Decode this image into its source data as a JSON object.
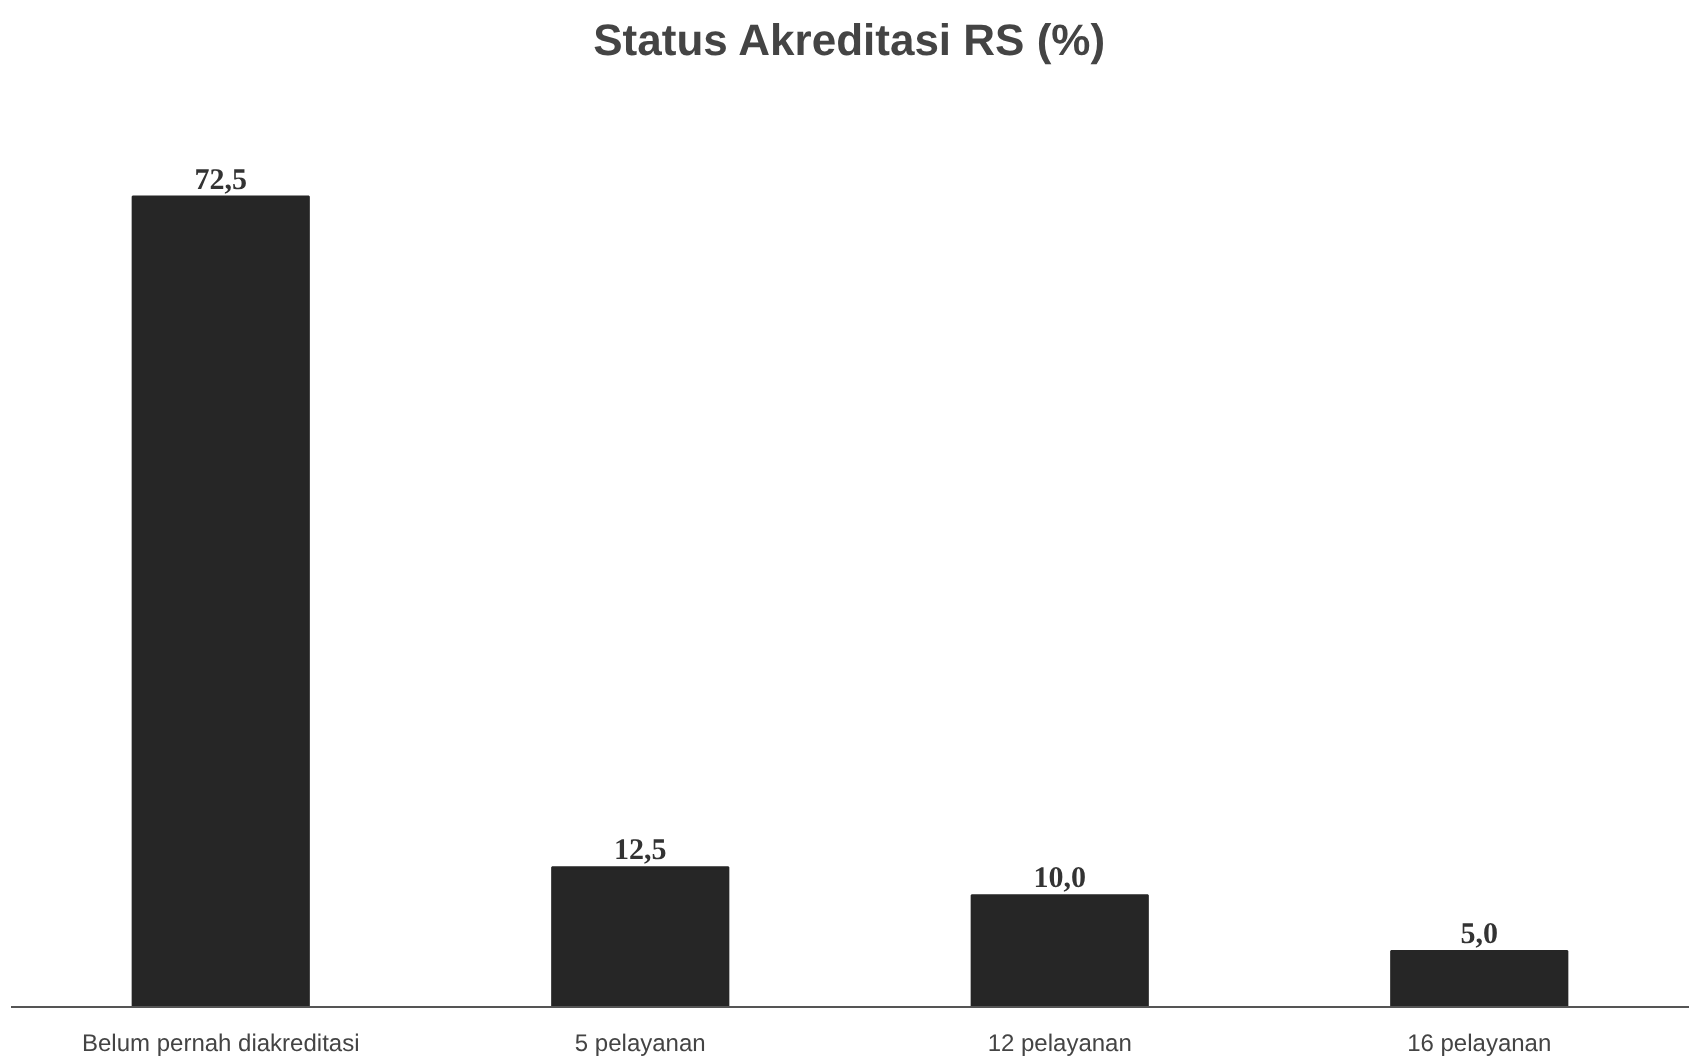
{
  "chart_data": {
    "type": "bar",
    "title": "Status Akreditasi RS (%)",
    "categories": [
      "Belum pernah diakreditasi",
      "5 pelayanan",
      "12 pelayanan",
      "16 pelayanan"
    ],
    "values": [
      72.5,
      12.5,
      10.0,
      5.0
    ],
    "value_labels": [
      "72,5",
      "12,5",
      "10,0",
      "5,0"
    ],
    "color": "#262626",
    "grid": false
  }
}
